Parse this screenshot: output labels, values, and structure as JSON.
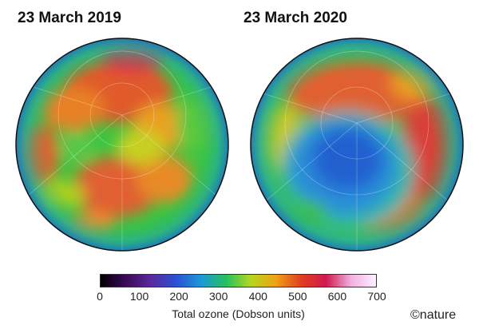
{
  "panels": [
    {
      "title": "23 March 2019"
    },
    {
      "title": "23 March 2020"
    }
  ],
  "colorbar": {
    "ticks": [
      "0",
      "100",
      "200",
      "300",
      "400",
      "500",
      "600",
      "700"
    ],
    "label": "Total ozone (Dobson units)",
    "gradient": [
      "#000000",
      "#3a0a5a",
      "#5a2a9c",
      "#2c4fd0",
      "#1e96d8",
      "#25c060",
      "#b4d81e",
      "#f0a018",
      "#e04020",
      "#d01850",
      "#f0b0e0",
      "#fff0ff"
    ]
  },
  "credit": "©nature"
}
